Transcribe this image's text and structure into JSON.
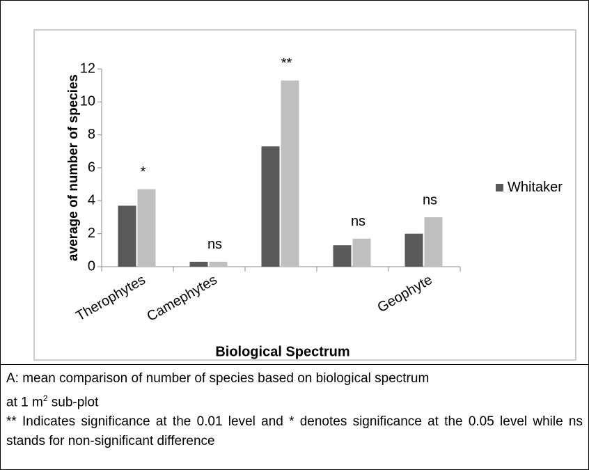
{
  "chart_data": {
    "type": "bar",
    "categories": [
      "Therophytes",
      "Camephytes",
      null,
      null,
      "Geophyte"
    ],
    "series": [
      {
        "name": "Whitaker",
        "color": "#595959",
        "values": [
          3.7,
          0.3,
          7.3,
          1.3,
          2.0
        ]
      },
      {
        "color": "#bfbfbf",
        "values": [
          4.7,
          0.3,
          11.3,
          1.7,
          3.0
        ]
      }
    ],
    "annotations": [
      "*",
      "ns",
      "**",
      "ns",
      "ns"
    ],
    "x_label": "Biological Spectrum",
    "y_label": "average of number of species",
    "ylim": [
      0,
      12
    ],
    "yticks": [
      0,
      2,
      4,
      6,
      8,
      10,
      12
    ],
    "grid": false,
    "legend": "right"
  },
  "caption": {
    "line1": "A: mean comparison of number of species based on biological spectrum",
    "line2": "at 1 m",
    "superscript": "2",
    "line2_after": " sub-plot",
    "note": "** Indicates significance at the 0.01 level and * denotes significance at the 0.05 level while ns stands for non-significant difference"
  }
}
